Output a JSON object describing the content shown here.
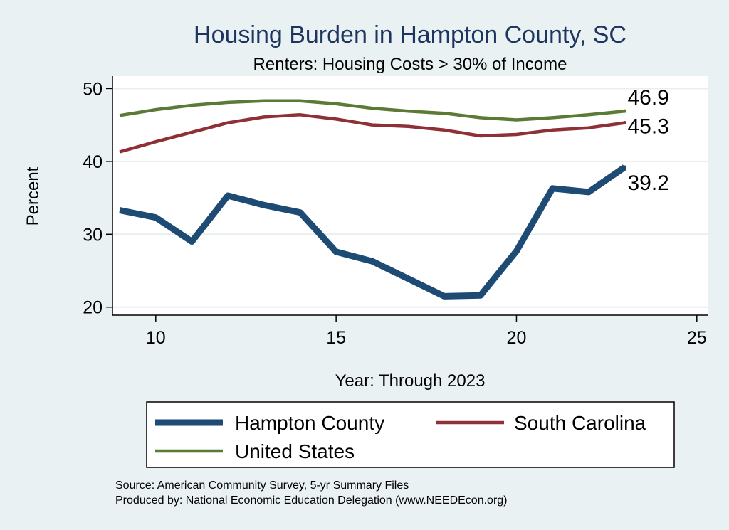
{
  "chart_data": {
    "type": "line",
    "title": "Housing Burden in Hampton County, SC",
    "subtitle": "Renters: Housing Costs > 30% of Income",
    "xlabel": "Year: Through 2023",
    "ylabel": "Percent",
    "xlim": [
      8.8,
      25.3
    ],
    "ylim": [
      18.9,
      51.7
    ],
    "x_ticks": [
      10,
      15,
      20,
      25
    ],
    "y_ticks": [
      20,
      30,
      40,
      50
    ],
    "x": [
      9,
      10,
      11,
      12,
      13,
      14,
      15,
      16,
      17,
      18,
      19,
      20,
      21,
      22,
      23
    ],
    "series": [
      {
        "name": "Hampton County",
        "color": "#1d4b73",
        "values": [
          33.3,
          32.3,
          29.0,
          35.3,
          34.0,
          33.0,
          27.6,
          26.3,
          23.9,
          21.5,
          21.6,
          27.7,
          36.3,
          35.8,
          39.2
        ],
        "end_label": "39.2"
      },
      {
        "name": "South Carolina",
        "color": "#8e3036",
        "values": [
          41.3,
          42.7,
          44.0,
          45.3,
          46.1,
          46.4,
          45.8,
          45.0,
          44.8,
          44.3,
          43.5,
          43.7,
          44.3,
          44.6,
          45.3
        ],
        "end_label": "45.3"
      },
      {
        "name": "United States",
        "color": "#5a7a35",
        "values": [
          46.3,
          47.1,
          47.7,
          48.1,
          48.3,
          48.3,
          47.9,
          47.3,
          46.9,
          46.6,
          46.0,
          45.7,
          46.0,
          46.4,
          46.9
        ],
        "end_label": "46.9"
      }
    ],
    "legend_position": "bottom",
    "grid": true
  },
  "source_line1": "Source: American Community Survey, 5-yr Summary Files",
  "source_line2": "Produced by: National Economic Education Delegation (www.NEEDEcon.org)"
}
